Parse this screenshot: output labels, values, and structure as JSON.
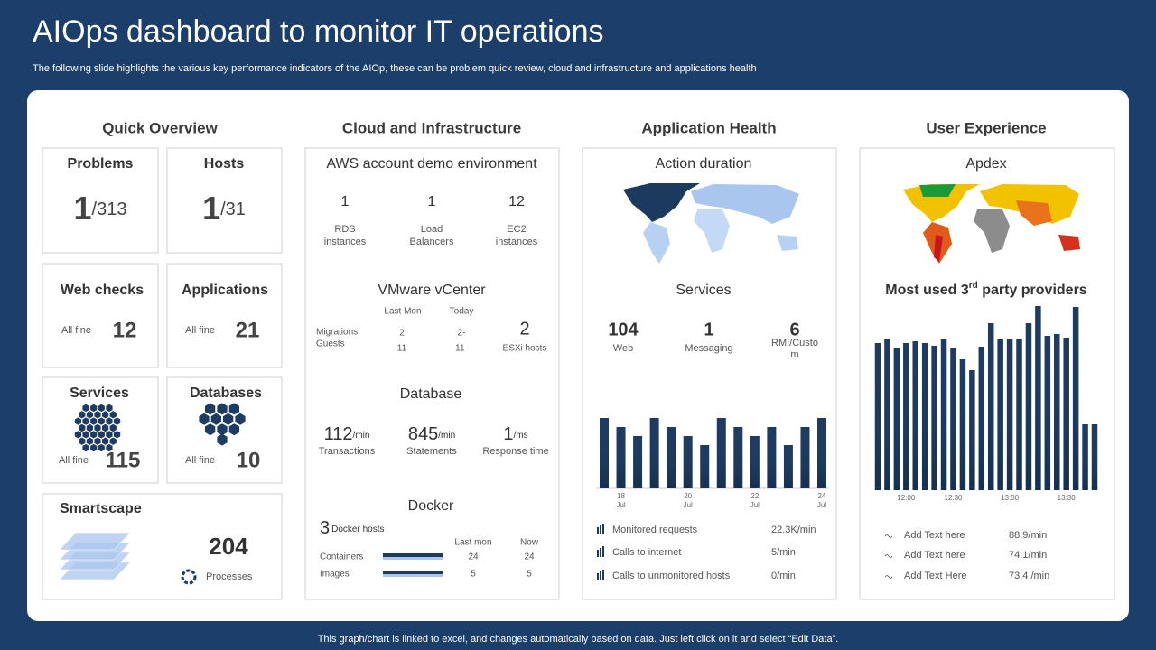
{
  "header": {
    "title": "AIOps dashboard to monitor IT operations",
    "subtitle": "The following slide highlights the various key performance indicators of the AIOp,  these can be problem quick review, cloud and infrastructure and applications health"
  },
  "footer": "This graph/chart is linked to excel,  and changes automatically based on data. Just left click on it and select “Edit Data”.",
  "quick_overview": {
    "heading": "Quick Overview",
    "problems": {
      "label": "Problems",
      "value": "1",
      "total": "/313"
    },
    "hosts": {
      "label": "Hosts",
      "value": "1",
      "total": "/31"
    },
    "web_checks": {
      "label": "Web checks",
      "status": "All fine",
      "value": "12"
    },
    "applications": {
      "label": "Applications",
      "status": "All fine",
      "value": "21"
    },
    "services": {
      "label": "Services",
      "status": "All fine",
      "value": "115"
    },
    "databases": {
      "label": "Databases",
      "status": "All fine",
      "value": "10"
    },
    "smartscape": {
      "label": "Smartscape",
      "value": "204",
      "caption": "Processes"
    }
  },
  "cloud": {
    "heading": "Cloud and Infrastructure",
    "aws": {
      "title": "AWS account demo environment",
      "metrics": [
        {
          "value": "1",
          "label": [
            "RDS",
            "instances"
          ]
        },
        {
          "value": "1",
          "label": [
            "Load",
            "Balancers"
          ]
        },
        {
          "value": "12",
          "label": [
            "EC2",
            "instances"
          ]
        }
      ]
    },
    "vmware": {
      "title": "VMware vCenter",
      "col_last": "Last Mon",
      "col_today": "Today",
      "rows": [
        {
          "label": "Migrations",
          "last": "2",
          "today": "2-"
        },
        {
          "label": "Guests",
          "last": "11",
          "today": "11-"
        }
      ],
      "esxi_value": "2",
      "esxi_label": "ESXi  hosts"
    },
    "database": {
      "title": "Database",
      "metrics": [
        {
          "value": "112",
          "unit": "/min",
          "label": "Transactions"
        },
        {
          "value": "845",
          "unit": "/min",
          "label": "Statements"
        },
        {
          "value": "1",
          "unit": "/ms",
          "label": "Response time"
        }
      ]
    },
    "docker": {
      "title": "Docker",
      "hosts_value": "3",
      "hosts_label": "Docker hosts",
      "col_last": "Last mon",
      "col_now": "Now",
      "rows": [
        {
          "label": "Containers",
          "last": "24",
          "now": "24"
        },
        {
          "label": "Images",
          "last": "5",
          "now": "5"
        }
      ]
    }
  },
  "app_health": {
    "heading": "Application  Health",
    "action_title": "Action duration",
    "services_title": "Services",
    "metrics": [
      {
        "value": "104",
        "label": [
          "Web"
        ]
      },
      {
        "value": "1",
        "label": [
          "Messaging"
        ]
      },
      {
        "value": "6",
        "label": [
          "RMI/Custo",
          "m"
        ]
      }
    ],
    "chart": {
      "type": "bar",
      "color": "#1c3a5e",
      "categories": [
        null,
        [
          "18",
          "Jul"
        ],
        null,
        null,
        null,
        [
          "20",
          "Jul"
        ],
        null,
        null,
        null,
        [
          "22",
          "Jul"
        ],
        null,
        null,
        null,
        [
          "24",
          "Jul"
        ]
      ],
      "values": [
        78,
        68,
        58,
        78,
        68,
        58,
        48,
        78,
        68,
        58,
        68,
        48,
        68,
        78
      ]
    },
    "stats": [
      {
        "label": "Monitored requests",
        "value": "22.3K/min"
      },
      {
        "label": "Calls to internet",
        "value": "5/min"
      },
      {
        "label": "Calls to unmonitored hosts",
        "value": "0/min"
      }
    ]
  },
  "user_experience": {
    "heading": "User Experience",
    "apdex_title": "Apdex",
    "providers_title": {
      "before": "Most used 3",
      "sup": "rd",
      "after": " party providers"
    },
    "chart": {
      "type": "bar",
      "color": "#1c3a5e",
      "categories": [
        null,
        null,
        null,
        "12:00",
        null,
        null,
        null,
        null,
        "12:30",
        null,
        null,
        null,
        null,
        null,
        "13:00",
        null,
        null,
        null,
        null,
        null,
        "13:30",
        null,
        null,
        null
      ],
      "values": [
        163,
        167,
        157,
        163,
        165,
        163,
        160,
        167,
        157,
        145,
        133,
        159,
        185,
        167,
        167,
        167,
        185,
        204,
        171,
        173,
        169,
        203,
        73,
        73
      ]
    },
    "stats": [
      {
        "label": "Add Text here",
        "value": "88.9/min"
      },
      {
        "label": "Add Text here",
        "value": "74.1/min"
      },
      {
        "label": "Add Text Here",
        "value": "73.4 /min"
      }
    ]
  }
}
